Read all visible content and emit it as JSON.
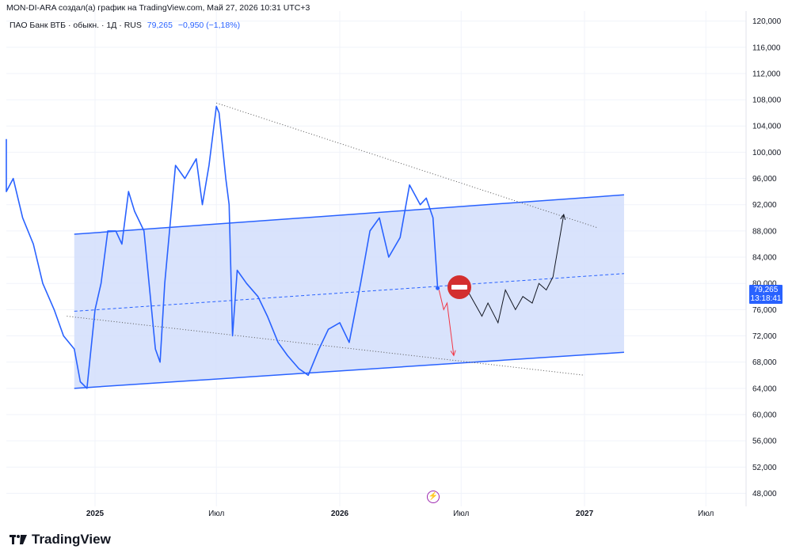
{
  "header": {
    "credit": "MON-DI-ARA создал(а) график на TradingView.com, Май 27, 2026 10:31 UTC+3",
    "symbol": "ПАО Банк ВТБ · обыкн. · 1Д · RUS",
    "last_price": "79,265",
    "change": "−0,950 (−1,18%)"
  },
  "price_badge": {
    "price": "79,265",
    "time": "13:18:41"
  },
  "brand": {
    "name": "TradingView"
  },
  "icons": {
    "events": "lightning-icon",
    "logo": "tradingview-logo-icon",
    "stop": "no-entry-icon"
  },
  "colors": {
    "price_line": "#2962ff",
    "channel_fill": "#d2defc",
    "channel_border": "#2962ff",
    "stop_sign": "#d32f2f",
    "arrow_down": "#f23645",
    "forecast": "#131722"
  },
  "chart_data": {
    "type": "line",
    "title": "",
    "xlabel": "",
    "ylabel": "",
    "x_ticks": [
      "2025",
      "Июл",
      "2026",
      "Июл",
      "2027",
      "Июл"
    ],
    "y_ticks": [
      "120,000",
      "116,000",
      "112,000",
      "108,000",
      "104,000",
      "100,000",
      "96,000",
      "92,000",
      "88,000",
      "84,000",
      "80,000",
      "76,000",
      "72,000",
      "68,000",
      "64,000",
      "60,000",
      "56,000",
      "52,000",
      "48,000"
    ],
    "ylim": [
      46,
      122
    ],
    "grid": true,
    "series": [
      {
        "x": [
          "2024-07",
          "2024-07-15",
          "2024-08",
          "2024-08-15",
          "2024-09",
          "2024-09-15",
          "2024-10",
          "2024-10-15",
          "2024-11",
          "2024-11-15",
          "2024-12",
          "2024-12-10",
          "2024-12-20",
          "2025-01",
          "2025-01-10",
          "2025-01-20",
          "2025-02",
          "2025-02-10",
          "2025-02-20",
          "2025-03",
          "2025-03-15",
          "2025-04",
          "2025-04-08",
          "2025-04-15",
          "2025-05",
          "2025-05-15",
          "2025-06",
          "2025-06-10",
          "2025-06-20",
          "2025-07",
          "2025-07-05",
          "2025-07-15",
          "2025-07-20",
          "2025-07-25",
          "2025-08",
          "2025-08-15",
          "2025-09",
          "2025-09-15",
          "2025-10",
          "2025-10-15",
          "2025-11",
          "2025-11-15",
          "2025-12",
          "2025-12-15",
          "2026-01",
          "2026-01-15",
          "2026-02",
          "2026-02-15",
          "2026-03",
          "2026-03-15",
          "2026-04",
          "2026-04-15",
          "2026-05",
          "2026-05-10",
          "2026-05-20",
          "2026-05-27"
        ],
        "values": [
          102,
          96,
          99,
          94,
          96,
          90,
          86,
          80,
          76,
          72,
          70,
          65,
          64,
          76,
          80,
          88,
          88,
          86,
          94,
          91,
          88,
          70,
          68,
          80,
          98,
          96,
          99,
          92,
          98,
          107,
          106,
          96,
          92,
          72,
          82,
          80,
          78,
          75,
          71,
          69,
          67,
          66,
          70,
          73,
          74,
          71,
          80,
          88,
          90,
          84,
          87,
          95,
          92,
          93,
          90,
          79.265
        ]
      }
    ],
    "annotations": [
      {
        "type": "ascending_channel",
        "upper": [
          [
            "2024-12-01",
            87.5
          ],
          [
            "2027-03-01",
            93.5
          ]
        ],
        "lower": [
          [
            "2024-12-01",
            64
          ],
          [
            "2027-03-01",
            69.5
          ]
        ],
        "midline": true
      },
      {
        "type": "trendline_dotted",
        "points": [
          [
            "2025-07-01",
            107.5
          ],
          [
            "2027-01-20",
            88.5
          ]
        ]
      },
      {
        "type": "trendline_dotted",
        "points": [
          [
            "2024-11-20",
            75
          ],
          [
            "2027-01-01",
            66
          ]
        ]
      },
      {
        "type": "arrow_path",
        "color": "red",
        "points": [
          [
            "2026-05-29",
            79
          ],
          [
            "2026-06-05",
            76
          ],
          [
            "2026-06-10",
            77
          ],
          [
            "2026-06-20",
            69
          ]
        ]
      },
      {
        "type": "arrow_path",
        "color": "black",
        "points": [
          [
            "2026-07-10",
            79
          ],
          [
            "2026-08-01",
            75
          ],
          [
            "2026-08-10",
            77
          ],
          [
            "2026-08-25",
            74
          ],
          [
            "2026-09-05",
            79
          ],
          [
            "2026-09-20",
            76
          ],
          [
            "2026-10-01",
            78
          ],
          [
            "2026-10-15",
            77
          ],
          [
            "2026-10-25",
            80
          ],
          [
            "2026-11-05",
            79
          ],
          [
            "2026-11-15",
            81
          ],
          [
            "2026-12-01",
            90.5
          ]
        ]
      }
    ]
  }
}
